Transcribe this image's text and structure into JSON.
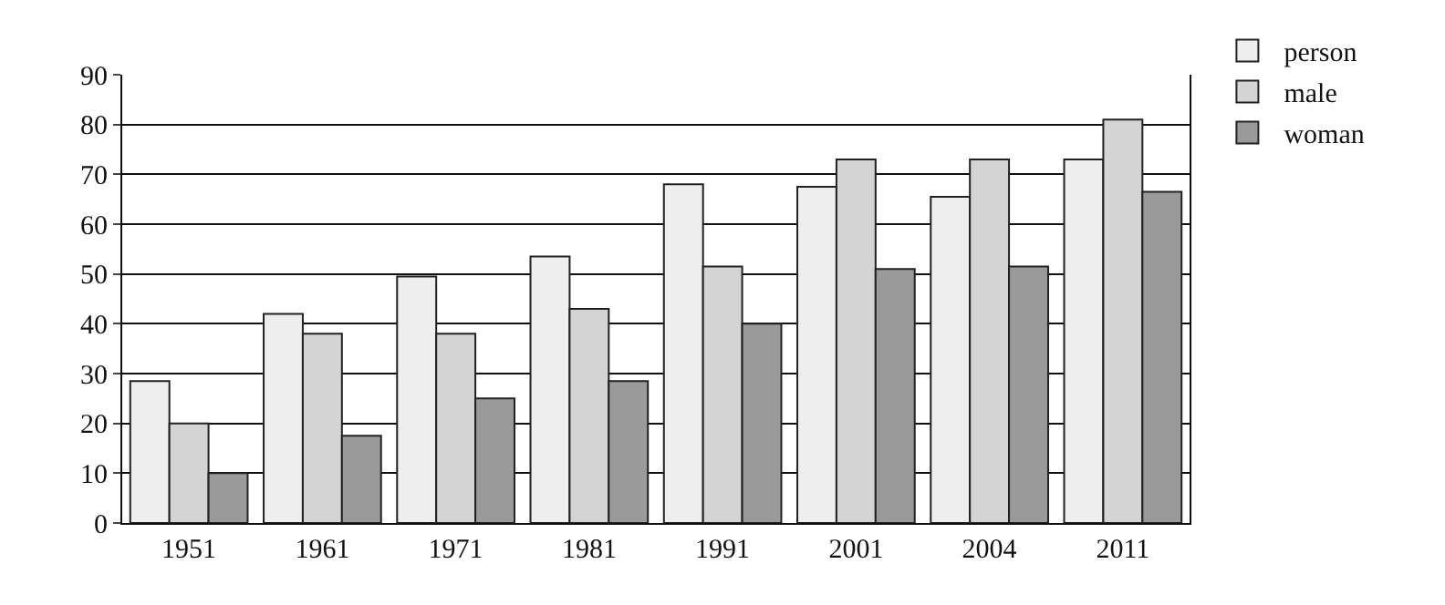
{
  "chart_data": {
    "type": "bar",
    "categories": [
      "1951",
      "1961",
      "1971",
      "1981",
      "1991",
      "2001",
      "2004",
      "2011"
    ],
    "series": [
      {
        "name": "person",
        "color": "#eeeeee",
        "values": [
          28.5,
          42,
          49.5,
          53.5,
          68,
          67.5,
          65.5,
          73
        ]
      },
      {
        "name": "male",
        "color": "#d4d4d4",
        "values": [
          20,
          38,
          38,
          43,
          51.5,
          73,
          73,
          81
        ]
      },
      {
        "name": "woman",
        "color": "#9a9a9a",
        "values": [
          10,
          17.5,
          25,
          28.5,
          40,
          51,
          51.5,
          66.5
        ]
      }
    ],
    "ylim": [
      0,
      90
    ],
    "yticks": [
      0,
      10,
      20,
      30,
      40,
      50,
      60,
      70,
      80,
      90
    ],
    "grid": "y",
    "legend": "top right"
  }
}
